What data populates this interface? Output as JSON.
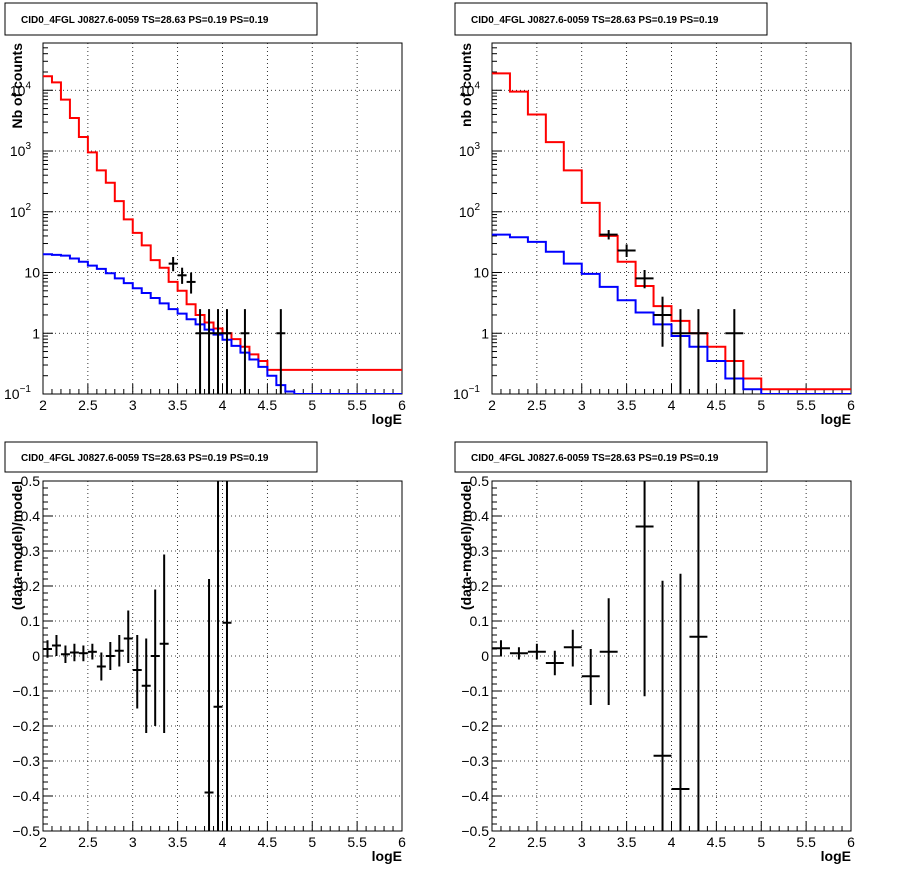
{
  "panels": [
    {
      "id": "p1",
      "title": "CID0_4FGL J0827.6-0059 TS=28.63 PS=0.19 PS=0.19",
      "ylabel": "Nb of counts",
      "xlabel": "logE",
      "scale": "log",
      "xlim": [
        2,
        6
      ],
      "ylim": [
        0.1,
        60000
      ],
      "xticks": [
        "2",
        "2.5",
        "3",
        "3.5",
        "4",
        "4.5",
        "5",
        "5.5",
        "6"
      ],
      "yticks": [
        {
          "v": 0.1,
          "label": "10",
          "sup": "−1"
        },
        {
          "v": 1,
          "label": "1",
          "sup": ""
        },
        {
          "v": 10,
          "label": "10",
          "sup": ""
        },
        {
          "v": 100,
          "label": "10",
          "sup": "2"
        },
        {
          "v": 1000,
          "label": "10",
          "sup": "3"
        },
        {
          "v": 10000,
          "label": "10",
          "sup": "4"
        }
      ]
    },
    {
      "id": "p2",
      "title": "CID0_4FGL J0827.6-0059 TS=28.63 PS=0.19 PS=0.19",
      "ylabel": "nb of counts",
      "xlabel": "logE",
      "scale": "log",
      "xlim": [
        2,
        6
      ],
      "ylim": [
        0.1,
        60000
      ],
      "xticks": [
        "2",
        "2.5",
        "3",
        "3.5",
        "4",
        "4.5",
        "5",
        "5.5",
        "6"
      ],
      "yticks": [
        {
          "v": 0.1,
          "label": "10",
          "sup": "−1"
        },
        {
          "v": 1,
          "label": "1",
          "sup": ""
        },
        {
          "v": 10,
          "label": "10",
          "sup": ""
        },
        {
          "v": 100,
          "label": "10",
          "sup": "2"
        },
        {
          "v": 1000,
          "label": "10",
          "sup": "3"
        },
        {
          "v": 10000,
          "label": "10",
          "sup": "4"
        }
      ]
    },
    {
      "id": "p3",
      "title": "CID0_4FGL J0827.6-0059 TS=28.63 PS=0.19 PS=0.19",
      "ylabel": "(data-model)/model",
      "xlabel": "logE",
      "scale": "linear",
      "xlim": [
        2,
        6
      ],
      "ylim": [
        -0.5,
        0.5
      ],
      "xticks": [
        "2",
        "2.5",
        "3",
        "3.5",
        "4",
        "4.5",
        "5",
        "5.5",
        "6"
      ],
      "yticks": [
        {
          "v": -0.5,
          "label": "−0.5",
          "sup": ""
        },
        {
          "v": -0.4,
          "label": "−0.4",
          "sup": ""
        },
        {
          "v": -0.3,
          "label": "−0.3",
          "sup": ""
        },
        {
          "v": -0.2,
          "label": "−0.2",
          "sup": ""
        },
        {
          "v": -0.1,
          "label": "−0.1",
          "sup": ""
        },
        {
          "v": 0,
          "label": "0",
          "sup": ""
        },
        {
          "v": 0.1,
          "label": "0.1",
          "sup": ""
        },
        {
          "v": 0.2,
          "label": "0.2",
          "sup": ""
        },
        {
          "v": 0.3,
          "label": "0.3",
          "sup": ""
        },
        {
          "v": 0.4,
          "label": "0.4",
          "sup": ""
        },
        {
          "v": 0.5,
          "label": "0.5",
          "sup": ""
        }
      ]
    },
    {
      "id": "p4",
      "title": "CID0_4FGL J0827.6-0059 TS=28.63 PS=0.19 PS=0.19",
      "ylabel": "(data-model)/model",
      "xlabel": "logE",
      "scale": "linear",
      "xlim": [
        2,
        6
      ],
      "ylim": [
        -0.5,
        0.5
      ],
      "xticks": [
        "2",
        "2.5",
        "3",
        "3.5",
        "4",
        "4.5",
        "5",
        "5.5",
        "6"
      ],
      "yticks": [
        {
          "v": -0.5,
          "label": "−0.5",
          "sup": ""
        },
        {
          "v": -0.4,
          "label": "−0.4",
          "sup": ""
        },
        {
          "v": -0.3,
          "label": "−0.3",
          "sup": ""
        },
        {
          "v": -0.2,
          "label": "−0.2",
          "sup": ""
        },
        {
          "v": -0.1,
          "label": "−0.1",
          "sup": ""
        },
        {
          "v": 0,
          "label": "0",
          "sup": ""
        },
        {
          "v": 0.1,
          "label": "0.1",
          "sup": ""
        },
        {
          "v": 0.2,
          "label": "0.2",
          "sup": ""
        },
        {
          "v": 0.3,
          "label": "0.3",
          "sup": ""
        },
        {
          "v": 0.4,
          "label": "0.4",
          "sup": ""
        },
        {
          "v": 0.5,
          "label": "0.5",
          "sup": ""
        }
      ]
    }
  ],
  "chart_data": [
    {
      "type": "line",
      "scale": "log",
      "xlim": [
        2,
        6
      ],
      "ylim": [
        0.1,
        60000
      ],
      "grid": true,
      "bin_width": 0.1,
      "x_start": 2.0,
      "series": [
        {
          "color": "#ff0000",
          "style": "step",
          "values": [
            17000,
            13500,
            7000,
            3500,
            1700,
            950,
            480,
            300,
            150,
            75,
            45,
            28,
            16,
            12,
            7,
            5,
            3,
            2,
            1.5,
            1.2,
            1.0,
            0.8,
            0.6,
            0.45,
            0.35,
            0.25
          ]
        },
        {
          "color": "#0000ff",
          "style": "step",
          "values": [
            20,
            19.5,
            19,
            17,
            15,
            13,
            11.5,
            9.7,
            8,
            6.7,
            5.5,
            4.6,
            3.8,
            3.1,
            2.5,
            2.1,
            1.7,
            1.4,
            1.15,
            0.95,
            0.78,
            0.62,
            0.48,
            0.37,
            0.28,
            0.2,
            0.14,
            0.11,
            0.1,
            0.1,
            0.1,
            0.1,
            0.1,
            0.1,
            0.1,
            0.1,
            0.1,
            0.1,
            0.1,
            0.1
          ]
        },
        {
          "color": "#000000",
          "style": "errorbar",
          "points": [
            {
              "x": 3.45,
              "y": 14,
              "lo": 10.5,
              "hi": 18
            },
            {
              "x": 3.55,
              "y": 9,
              "lo": 6.5,
              "hi": 12
            },
            {
              "x": 3.65,
              "y": 7,
              "lo": 4.5,
              "hi": 10
            },
            {
              "x": 3.75,
              "y": 1,
              "lo": 0.1,
              "hi": 2.5
            },
            {
              "x": 3.85,
              "y": 1,
              "lo": 0.1,
              "hi": 2.5
            },
            {
              "x": 3.95,
              "y": 1,
              "lo": 0.1,
              "hi": 2.5
            },
            {
              "x": 4.05,
              "y": 1,
              "lo": 0.1,
              "hi": 2.5
            },
            {
              "x": 4.25,
              "y": 1,
              "lo": 0.1,
              "hi": 2.5
            },
            {
              "x": 4.65,
              "y": 1,
              "lo": 0.1,
              "hi": 2.5
            }
          ]
        }
      ]
    },
    {
      "type": "line",
      "scale": "log",
      "xlim": [
        2,
        6
      ],
      "ylim": [
        0.1,
        60000
      ],
      "grid": true,
      "bin_width": 0.2,
      "x_start": 2.0,
      "series": [
        {
          "color": "#ff0000",
          "style": "step",
          "values": [
            19000,
            9500,
            4000,
            1400,
            480,
            140,
            40,
            15,
            6,
            2.8,
            1.6,
            1.0,
            0.6,
            0.35,
            0.18,
            0.12
          ]
        },
        {
          "color": "#0000ff",
          "style": "step",
          "values": [
            42,
            38,
            32,
            22,
            14,
            9.5,
            5.8,
            3.5,
            2.2,
            1.4,
            0.9,
            0.6,
            0.35,
            0.18,
            0.12,
            0.1,
            0.1,
            0.1,
            0.1,
            0.1
          ]
        },
        {
          "color": "#000000",
          "style": "errorbar",
          "points": [
            {
              "x": 3.3,
              "y": 42,
              "lo": 35,
              "hi": 50
            },
            {
              "x": 3.5,
              "y": 23,
              "lo": 18,
              "hi": 29
            },
            {
              "x": 3.7,
              "y": 8,
              "lo": 5.5,
              "hi": 11
            },
            {
              "x": 3.9,
              "y": 2.0,
              "lo": 0.6,
              "hi": 4
            },
            {
              "x": 4.1,
              "y": 1,
              "lo": 0.1,
              "hi": 2.5
            },
            {
              "x": 4.3,
              "y": 1,
              "lo": 0.1,
              "hi": 2.5
            },
            {
              "x": 4.7,
              "y": 1,
              "lo": 0.1,
              "hi": 2.5
            }
          ]
        }
      ]
    },
    {
      "type": "scatter",
      "scale": "linear",
      "xlim": [
        2,
        6
      ],
      "ylim": [
        -0.5,
        0.5
      ],
      "grid": true,
      "series": [
        {
          "color": "#000000",
          "style": "errorbar",
          "xerr": 0.05,
          "points": [
            {
              "x": 2.05,
              "y": 0.02,
              "lo": -0.005,
              "hi": 0.045
            },
            {
              "x": 2.15,
              "y": 0.03,
              "lo": 0.0,
              "hi": 0.06
            },
            {
              "x": 2.25,
              "y": 0.005,
              "lo": -0.02,
              "hi": 0.03
            },
            {
              "x": 2.35,
              "y": 0.01,
              "lo": -0.015,
              "hi": 0.035
            },
            {
              "x": 2.45,
              "y": 0.008,
              "lo": -0.015,
              "hi": 0.03
            },
            {
              "x": 2.55,
              "y": 0.012,
              "lo": -0.01,
              "hi": 0.035
            },
            {
              "x": 2.65,
              "y": -0.03,
              "lo": -0.07,
              "hi": 0.01
            },
            {
              "x": 2.75,
              "y": 0.0,
              "lo": -0.04,
              "hi": 0.04
            },
            {
              "x": 2.85,
              "y": 0.015,
              "lo": -0.03,
              "hi": 0.06
            },
            {
              "x": 2.95,
              "y": 0.05,
              "lo": -0.02,
              "hi": 0.13
            },
            {
              "x": 3.05,
              "y": -0.04,
              "lo": -0.15,
              "hi": 0.06
            },
            {
              "x": 3.15,
              "y": -0.085,
              "lo": -0.22,
              "hi": 0.05
            },
            {
              "x": 3.25,
              "y": 0.0,
              "lo": -0.2,
              "hi": 0.19
            },
            {
              "x": 3.35,
              "y": 0.035,
              "lo": -0.22,
              "hi": 0.29
            },
            {
              "x": 3.85,
              "y": -0.39,
              "lo": -0.5,
              "hi": 0.22
            },
            {
              "x": 3.95,
              "y": -0.145,
              "lo": -0.5,
              "hi": 0.5
            },
            {
              "x": 4.05,
              "y": 0.095,
              "lo": -0.5,
              "hi": 0.5
            }
          ]
        }
      ]
    },
    {
      "type": "scatter",
      "scale": "linear",
      "xlim": [
        2,
        6
      ],
      "ylim": [
        -0.5,
        0.5
      ],
      "grid": true,
      "series": [
        {
          "color": "#000000",
          "style": "errorbar",
          "xerr": 0.1,
          "points": [
            {
              "x": 2.1,
              "y": 0.022,
              "lo": 0.0,
              "hi": 0.045
            },
            {
              "x": 2.3,
              "y": 0.008,
              "lo": -0.01,
              "hi": 0.025
            },
            {
              "x": 2.5,
              "y": 0.012,
              "lo": -0.01,
              "hi": 0.035
            },
            {
              "x": 2.7,
              "y": -0.02,
              "lo": -0.055,
              "hi": 0.015
            },
            {
              "x": 2.9,
              "y": 0.025,
              "lo": -0.03,
              "hi": 0.075
            },
            {
              "x": 3.1,
              "y": -0.058,
              "lo": -0.14,
              "hi": 0.02
            },
            {
              "x": 3.3,
              "y": 0.012,
              "lo": -0.14,
              "hi": 0.165
            },
            {
              "x": 3.7,
              "y": 0.37,
              "lo": -0.115,
              "hi": 0.5
            },
            {
              "x": 3.9,
              "y": -0.285,
              "lo": -0.5,
              "hi": 0.215
            },
            {
              "x": 4.1,
              "y": -0.38,
              "lo": -0.5,
              "hi": 0.235
            },
            {
              "x": 4.3,
              "y": 0.055,
              "lo": -0.5,
              "hi": 0.5
            }
          ]
        }
      ]
    }
  ]
}
